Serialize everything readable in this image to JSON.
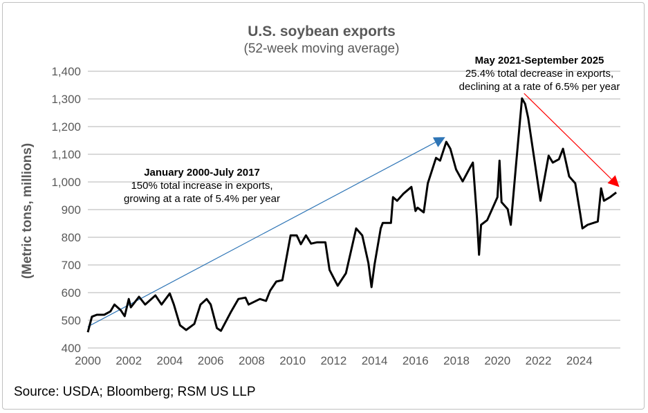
{
  "chart_data": {
    "type": "line",
    "title": "U.S. soybean exports",
    "subtitle": "(52-week moving average)",
    "xlabel": "",
    "ylabel": "(Metric tons, millions)",
    "xlim": [
      2000,
      2026
    ],
    "ylim": [
      400,
      1400
    ],
    "x_ticks": [
      "2000",
      "2002",
      "2004",
      "2006",
      "2008",
      "2010",
      "2012",
      "2014",
      "2016",
      "2018",
      "2020",
      "2022",
      "2024"
    ],
    "y_ticks": [
      "400",
      "500",
      "600",
      "700",
      "800",
      "900",
      "1,000",
      "1,100",
      "1,200",
      "1,300",
      "1,400"
    ],
    "grid": "horizontal",
    "line_color": "#000000",
    "series": [
      {
        "x": [
          2000.0,
          2000.2,
          2000.44,
          2000.8,
          2001.1,
          2001.3,
          2001.6,
          2001.8,
          2002.0,
          2002.1,
          2002.5,
          2002.8,
          2003.3,
          2003.6,
          2004.0,
          2004.2,
          2004.5,
          2004.8,
          2005.2,
          2005.5,
          2005.8,
          2006.0,
          2006.3,
          2006.5,
          2007.0,
          2007.35,
          2007.7,
          2007.85,
          2008.4,
          2008.7,
          2008.9,
          2009.2,
          2009.5,
          2009.9,
          2010.2,
          2010.4,
          2010.65,
          2010.9,
          2011.2,
          2011.6,
          2011.8,
          2012.2,
          2012.6,
          2013.1,
          2013.4,
          2013.7,
          2013.85,
          2014.0,
          2014.3,
          2014.4,
          2014.8,
          2014.9,
          2015.1,
          2015.4,
          2015.8,
          2016.0,
          2016.1,
          2016.4,
          2016.6,
          2017.0,
          2017.2,
          2017.5,
          2017.7,
          2017.98,
          2018.3,
          2018.7,
          2018.8,
          2019.0,
          2019.1,
          2019.2,
          2019.5,
          2019.7,
          2020.0,
          2020.1,
          2020.2,
          2020.5,
          2020.65,
          2020.9,
          2021.2,
          2021.35,
          2021.5,
          2021.85,
          2022.1,
          2022.5,
          2022.7,
          2023.0,
          2023.2,
          2023.5,
          2023.8,
          2024.05,
          2024.15,
          2024.4,
          2024.9,
          2025.06,
          2025.2,
          2025.5,
          2025.8
        ],
        "y": [
          457,
          513,
          520,
          520,
          532,
          557,
          537,
          515,
          577,
          547,
          585,
          557,
          590,
          557,
          597,
          557,
          482,
          465,
          487,
          557,
          577,
          557,
          472,
          462,
          532,
          577,
          582,
          557,
          577,
          570,
          607,
          640,
          645,
          807,
          807,
          775,
          807,
          777,
          782,
          782,
          682,
          625,
          670,
          832,
          807,
          707,
          620,
          702,
          832,
          852,
          852,
          945,
          932,
          957,
          982,
          895,
          907,
          890,
          995,
          1087,
          1077,
          1145,
          1120,
          1045,
          1002,
          1057,
          1070,
          870,
          737,
          845,
          862,
          895,
          945,
          1077,
          927,
          902,
          845,
          1057,
          1302,
          1282,
          1232,
          1057,
          932,
          1095,
          1070,
          1082,
          1120,
          1020,
          995,
          882,
          832,
          845,
          857,
          977,
          932,
          945,
          962
        ]
      }
    ],
    "annotations": [
      {
        "heading": "January 2000-July 2017",
        "lines": [
          "150% total increase in exports,",
          "growing at a rate of 5.4% per year"
        ],
        "arrow_color": "#2E75B6",
        "arrow_from": [
          2000.0,
          477
        ],
        "arrow_to": [
          2017.45,
          1162
        ]
      },
      {
        "heading": "May 2021-September 2025",
        "lines": [
          "25.4% total decrease  in  exports,",
          "declining at a rate of 6.5% per year"
        ],
        "arrow_color": "#FF0000",
        "arrow_from": [
          2021.3,
          1320
        ],
        "arrow_to": [
          2025.95,
          982
        ]
      }
    ]
  },
  "source": "Source: USDA; Bloomberg; RSM US LLP"
}
